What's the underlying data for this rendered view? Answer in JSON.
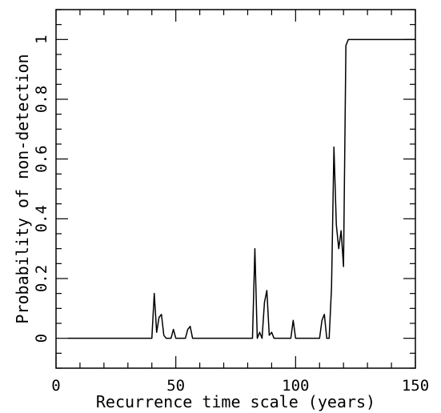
{
  "chart_data": {
    "type": "line",
    "xlabel": "Recurrence time scale (years)",
    "ylabel": "Probability of non-detection",
    "xlim": [
      0,
      150
    ],
    "ylim": [
      -0.1,
      1.1
    ],
    "x_ticks": [
      0,
      50,
      100,
      150
    ],
    "x_tick_labels": [
      "0",
      "50",
      "100",
      "150"
    ],
    "y_ticks": [
      0,
      0.2,
      0.4,
      0.6,
      0.8,
      1
    ],
    "y_tick_labels": [
      "0",
      "0.2",
      "0.4",
      "0.6",
      "0.8",
      "1"
    ],
    "grid": false,
    "colors": {
      "line": "#000000",
      "axes": "#000000",
      "background": "#ffffff"
    },
    "series": [
      {
        "x": [
          5,
          40,
          41,
          42,
          43,
          44,
          45,
          46,
          48,
          49,
          50,
          54,
          55,
          56,
          57,
          82,
          83,
          84,
          85,
          86,
          87,
          88,
          89,
          90,
          91,
          92,
          98,
          99,
          100,
          110,
          111,
          112,
          113,
          114,
          115,
          116,
          117,
          118,
          119,
          120,
          121,
          122,
          150
        ],
        "y": [
          0,
          0,
          0.15,
          0.02,
          0.07,
          0.08,
          0.01,
          0,
          0,
          0.03,
          0,
          0,
          0.03,
          0.04,
          0,
          0,
          0.3,
          0,
          0.02,
          0,
          0.12,
          0.16,
          0.01,
          0.02,
          0,
          0,
          0,
          0.06,
          0,
          0,
          0.06,
          0.08,
          0,
          0,
          0.17,
          0.64,
          0.38,
          0.3,
          0.36,
          0.24,
          0.98,
          1,
          1
        ]
      }
    ]
  }
}
